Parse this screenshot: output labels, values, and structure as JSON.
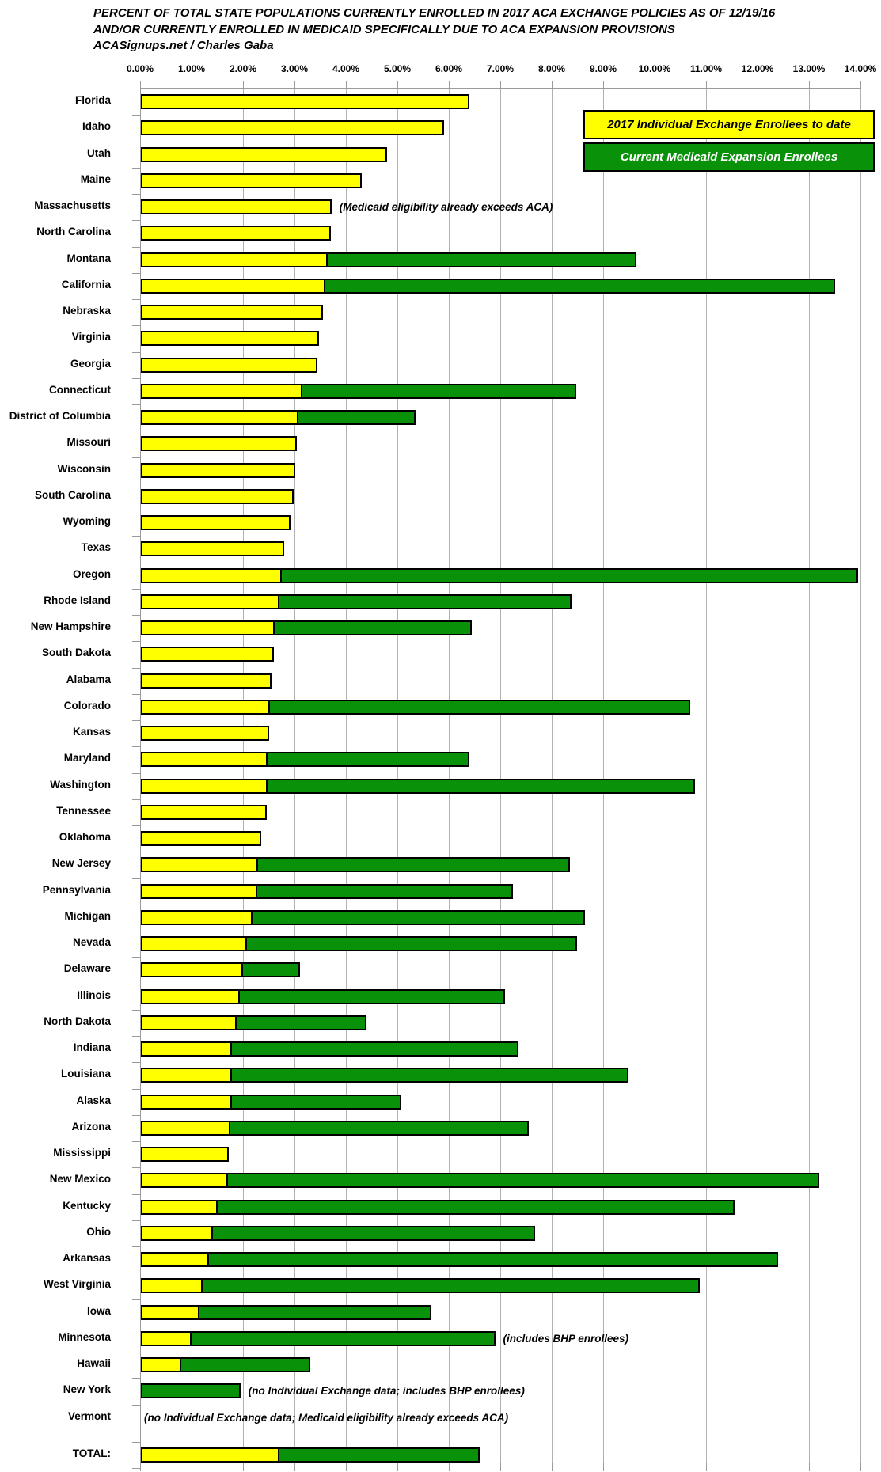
{
  "title": {
    "line1": "PERCENT OF TOTAL STATE POPULATIONS CURRENTLY ENROLLED IN 2017 ACA EXCHANGE POLICIES AS OF 12/19/16",
    "line2": "AND/OR CURRENTLY ENROLLED IN MEDICAID SPECIFICALLY DUE TO ACA EXPANSION PROVISIONS",
    "source": "ACASignups.net / Charles Gaba"
  },
  "legend": {
    "exchange_label": "2017 Individual Exchange Enrollees to date",
    "medicaid_label": "Current Medicaid Expansion Enrollees"
  },
  "colors": {
    "exchange_yellow": "#FFFF00",
    "medicaid_green": "#0A910A",
    "legend_yellow_text": "#000000",
    "legend_green_text": "#FFFFFF",
    "gridline": "#b2b2b2"
  },
  "axis": {
    "tick_labels": [
      "0.00%",
      "1.00%",
      "2.00%",
      "3.00%",
      "4.00%",
      "5.00%",
      "6.00%",
      "7.00%",
      "8.00%",
      "9.00%",
      "10.00%",
      "11.00%",
      "12.00%",
      "13.00%",
      "14.00%"
    ],
    "min": 0,
    "max": 14
  },
  "chart_data": {
    "type": "bar",
    "orientation": "horizontal",
    "stacked": true,
    "xlim": [
      0,
      14
    ],
    "grid": true,
    "legend_position": "top-right",
    "series_names": [
      "2017 Individual Exchange Enrollees to date",
      "Current Medicaid Expansion Enrollees"
    ],
    "units": "percent of total state population",
    "rows": [
      {
        "state": "Florida",
        "exchange_pct": 6.4,
        "medicaid_pct": 0,
        "note": ""
      },
      {
        "state": "Idaho",
        "exchange_pct": 5.9,
        "medicaid_pct": 0,
        "note": ""
      },
      {
        "state": "Utah",
        "exchange_pct": 4.8,
        "medicaid_pct": 0,
        "note": ""
      },
      {
        "state": "Maine",
        "exchange_pct": 4.3,
        "medicaid_pct": 0,
        "note": ""
      },
      {
        "state": "Massachusetts",
        "exchange_pct": 3.72,
        "medicaid_pct": 0,
        "note": "(Medicaid eligibility already exceeds ACA)"
      },
      {
        "state": "North Carolina",
        "exchange_pct": 3.7,
        "medicaid_pct": 0,
        "note": ""
      },
      {
        "state": "Montana",
        "exchange_pct": 3.65,
        "medicaid_pct": 6.0,
        "note": ""
      },
      {
        "state": "California",
        "exchange_pct": 3.6,
        "medicaid_pct": 9.9,
        "note": ""
      },
      {
        "state": "Nebraska",
        "exchange_pct": 3.55,
        "medicaid_pct": 0,
        "note": ""
      },
      {
        "state": "Virginia",
        "exchange_pct": 3.48,
        "medicaid_pct": 0,
        "note": ""
      },
      {
        "state": "Georgia",
        "exchange_pct": 3.45,
        "medicaid_pct": 0,
        "note": ""
      },
      {
        "state": "Connecticut",
        "exchange_pct": 3.16,
        "medicaid_pct": 5.32,
        "note": ""
      },
      {
        "state": "District of Columbia",
        "exchange_pct": 3.07,
        "medicaid_pct": 2.28,
        "note": ""
      },
      {
        "state": "Missouri",
        "exchange_pct": 3.05,
        "medicaid_pct": 0,
        "note": ""
      },
      {
        "state": "Wisconsin",
        "exchange_pct": 3.01,
        "medicaid_pct": 0,
        "note": ""
      },
      {
        "state": "South Carolina",
        "exchange_pct": 2.99,
        "medicaid_pct": 0,
        "note": ""
      },
      {
        "state": "Wyoming",
        "exchange_pct": 2.93,
        "medicaid_pct": 0,
        "note": ""
      },
      {
        "state": "Texas",
        "exchange_pct": 2.8,
        "medicaid_pct": 0,
        "note": ""
      },
      {
        "state": "Oregon",
        "exchange_pct": 2.76,
        "medicaid_pct": 11.2,
        "note": ""
      },
      {
        "state": "Rhode Island",
        "exchange_pct": 2.7,
        "medicaid_pct": 5.68,
        "note": ""
      },
      {
        "state": "New Hampshire",
        "exchange_pct": 2.62,
        "medicaid_pct": 3.83,
        "note": ""
      },
      {
        "state": "South Dakota",
        "exchange_pct": 2.6,
        "medicaid_pct": 0,
        "note": ""
      },
      {
        "state": "Alabama",
        "exchange_pct": 2.55,
        "medicaid_pct": 0,
        "note": ""
      },
      {
        "state": "Colorado",
        "exchange_pct": 2.52,
        "medicaid_pct": 8.18,
        "note": ""
      },
      {
        "state": "Kansas",
        "exchange_pct": 2.5,
        "medicaid_pct": 0,
        "note": ""
      },
      {
        "state": "Maryland",
        "exchange_pct": 2.48,
        "medicaid_pct": 3.92,
        "note": ""
      },
      {
        "state": "Washington",
        "exchange_pct": 2.47,
        "medicaid_pct": 8.31,
        "note": ""
      },
      {
        "state": "Tennessee",
        "exchange_pct": 2.46,
        "medicaid_pct": 0,
        "note": ""
      },
      {
        "state": "Oklahoma",
        "exchange_pct": 2.36,
        "medicaid_pct": 0,
        "note": ""
      },
      {
        "state": "New Jersey",
        "exchange_pct": 2.29,
        "medicaid_pct": 6.06,
        "note": ""
      },
      {
        "state": "Pennsylvania",
        "exchange_pct": 2.27,
        "medicaid_pct": 4.98,
        "note": ""
      },
      {
        "state": "Michigan",
        "exchange_pct": 2.18,
        "medicaid_pct": 6.47,
        "note": ""
      },
      {
        "state": "Nevada",
        "exchange_pct": 2.07,
        "medicaid_pct": 6.43,
        "note": ""
      },
      {
        "state": "Delaware",
        "exchange_pct": 2.0,
        "medicaid_pct": 1.1,
        "note": ""
      },
      {
        "state": "Illinois",
        "exchange_pct": 1.94,
        "medicaid_pct": 5.16,
        "note": ""
      },
      {
        "state": "North Dakota",
        "exchange_pct": 1.88,
        "medicaid_pct": 2.52,
        "note": ""
      },
      {
        "state": "Indiana",
        "exchange_pct": 1.79,
        "medicaid_pct": 5.56,
        "note": ""
      },
      {
        "state": "Louisiana",
        "exchange_pct": 1.78,
        "medicaid_pct": 7.72,
        "note": ""
      },
      {
        "state": "Alaska",
        "exchange_pct": 1.78,
        "medicaid_pct": 3.3,
        "note": ""
      },
      {
        "state": "Arizona",
        "exchange_pct": 1.76,
        "medicaid_pct": 5.79,
        "note": ""
      },
      {
        "state": "Mississippi",
        "exchange_pct": 1.73,
        "medicaid_pct": 0,
        "note": ""
      },
      {
        "state": "New Mexico",
        "exchange_pct": 1.7,
        "medicaid_pct": 11.5,
        "note": ""
      },
      {
        "state": "Kentucky",
        "exchange_pct": 1.5,
        "medicaid_pct": 10.05,
        "note": ""
      },
      {
        "state": "Ohio",
        "exchange_pct": 1.42,
        "medicaid_pct": 6.25,
        "note": ""
      },
      {
        "state": "Arkansas",
        "exchange_pct": 1.34,
        "medicaid_pct": 11.06,
        "note": ""
      },
      {
        "state": "West Virginia",
        "exchange_pct": 1.22,
        "medicaid_pct": 9.65,
        "note": ""
      },
      {
        "state": "Iowa",
        "exchange_pct": 1.16,
        "medicaid_pct": 4.5,
        "note": ""
      },
      {
        "state": "Minnesota",
        "exchange_pct": 1.0,
        "medicaid_pct": 5.9,
        "note": "(includes BHP enrollees)"
      },
      {
        "state": "Hawaii",
        "exchange_pct": 0.8,
        "medicaid_pct": 2.5,
        "note": ""
      },
      {
        "state": "New York",
        "exchange_pct": 0,
        "medicaid_pct": 1.95,
        "note": "(no Individual Exchange data; includes BHP enrollees)"
      },
      {
        "state": "Vermont",
        "exchange_pct": 0,
        "medicaid_pct": 0,
        "note": "(no Individual Exchange data; Medicaid eligibility already exceeds ACA)"
      },
      {
        "state": "TOTAL:",
        "exchange_pct": 2.7,
        "medicaid_pct": 3.9,
        "note": "",
        "is_total": true
      }
    ]
  }
}
